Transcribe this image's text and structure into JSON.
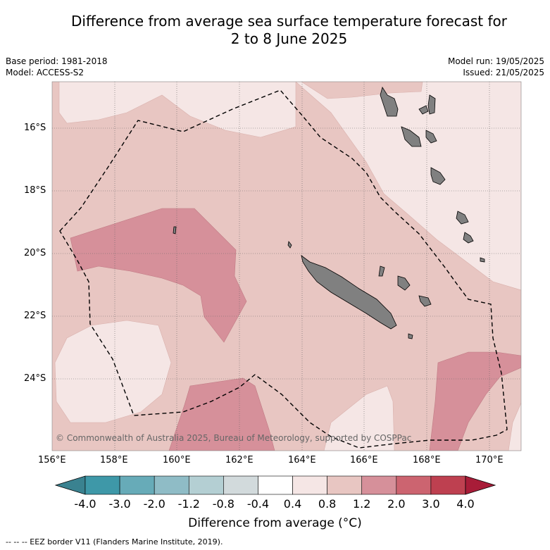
{
  "title_line1": "Difference from average sea surface temperature forecast for",
  "title_line2": "2 to 8 June 2025",
  "base_period": "Base period: 1981-2018",
  "model": "Model: ACCESS-S2",
  "model_run": "Model run: 19/05/2025",
  "issued": "Issued: 21/05/2025",
  "copyright": "© Commonwealth of Australia 2025, Bureau of Meteorology, supported by COSPPac",
  "latitude_labels": [
    "16°S",
    "18°S",
    "20°S",
    "22°S",
    "24°S"
  ],
  "longitude_labels": [
    "156°E",
    "158°E",
    "160°E",
    "162°E",
    "164°E",
    "166°E",
    "168°E",
    "170°E"
  ],
  "colorbar": {
    "title": "Difference from average (°C)",
    "ticks": [
      "-4.0",
      "-3.0",
      "-2.0",
      "-1.2",
      "-0.8",
      "-0.4",
      "0.4",
      "0.8",
      "1.2",
      "2.0",
      "3.0",
      "4.0"
    ],
    "colors": [
      "#3e98a8",
      "#67abb8",
      "#8fbcc6",
      "#b4cfd3",
      "#d2dadc",
      "#ffffff",
      "#f5e6e5",
      "#e8c6c2",
      "#d6909a",
      "#cc6470",
      "#be4050"
    ],
    "under_color": "#3a8290",
    "over_color": "#a81c38"
  },
  "eez_legend": "--  --  -- EEZ border V11 (Flanders Marine Institute, 2019).",
  "colors": {
    "land": "#808080",
    "grid": "#666666"
  }
}
